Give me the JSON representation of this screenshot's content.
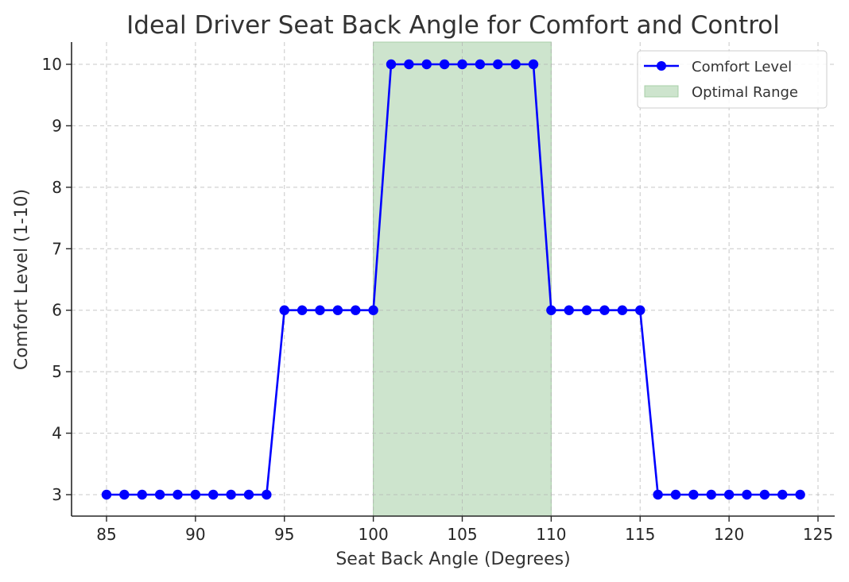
{
  "chart_data": {
    "type": "line",
    "title": "Ideal Driver Seat Back Angle for Comfort and Control",
    "xlabel": "Seat Back Angle (Degrees)",
    "ylabel": "Comfort Level (1-10)",
    "xlim": [
      83.5,
      125.9
    ],
    "ylim": [
      2.66,
      10.36
    ],
    "xticks": [
      85,
      90,
      95,
      100,
      105,
      110,
      115,
      120,
      125
    ],
    "yticks": [
      3,
      4,
      5,
      6,
      7,
      8,
      9,
      10
    ],
    "grid": true,
    "legend_position": "upper right",
    "x": [
      85,
      86,
      87,
      88,
      89,
      90,
      91,
      92,
      93,
      94,
      95,
      96,
      97,
      98,
      99,
      100,
      101,
      102,
      103,
      104,
      105,
      106,
      107,
      108,
      109,
      110,
      111,
      112,
      113,
      114,
      115,
      116,
      117,
      118,
      119,
      120,
      121,
      122,
      123,
      124
    ],
    "series": [
      {
        "name": "Comfort Level",
        "color": "#0000ff",
        "marker": "circle",
        "values": [
          3,
          3,
          3,
          3,
          3,
          3,
          3,
          3,
          3,
          3,
          6,
          6,
          6,
          6,
          6,
          6,
          10,
          10,
          10,
          10,
          10,
          10,
          10,
          10,
          10,
          6,
          6,
          6,
          6,
          6,
          6,
          3,
          3,
          3,
          3,
          3,
          3,
          3,
          3,
          3
        ]
      }
    ],
    "shaded_regions": [
      {
        "name": "Optimal Range",
        "x_start": 100,
        "x_end": 110,
        "color": "#cde4cd",
        "edge_color": "#a8cfa8"
      }
    ]
  },
  "legend": {
    "items": [
      {
        "label": "Comfort Level",
        "kind": "line-marker"
      },
      {
        "label": "Optimal Range",
        "kind": "patch"
      }
    ]
  }
}
